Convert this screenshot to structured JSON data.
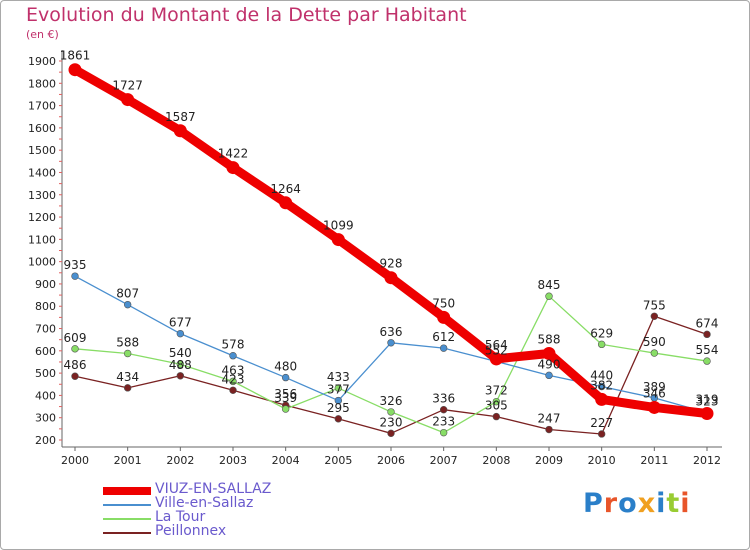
{
  "title": "Evolution du Montant de la Dette par Habitant",
  "unit": "(en €)",
  "logo": "Proxiti",
  "chart_data": {
    "type": "line",
    "x": [
      "2000",
      "2001",
      "2002",
      "2003",
      "2004",
      "2005",
      "2006",
      "2007",
      "2008",
      "2009",
      "2010",
      "2011",
      "2012"
    ],
    "ylim": [
      200,
      1900
    ],
    "yticks": [
      200,
      300,
      400,
      500,
      600,
      700,
      800,
      900,
      1000,
      1100,
      1200,
      1300,
      1400,
      1500,
      1600,
      1700,
      1800,
      1900
    ],
    "grid": false,
    "legend_position": "bottom-left",
    "series": [
      {
        "name": "VIUZ-EN-SALLAZ",
        "color": "#ee0000",
        "values": [
          1861,
          1727,
          1587,
          1422,
          1264,
          1099,
          928,
          750,
          564,
          588,
          382,
          346,
          319
        ]
      },
      {
        "name": "Ville-en-Sallaz",
        "color": "#4a8fcf",
        "values": [
          935,
          807,
          677,
          578,
          480,
          377,
          636,
          612,
          552,
          490,
          440,
          389,
          323
        ]
      },
      {
        "name": "La Tour",
        "color": "#88dd66",
        "values": [
          609,
          588,
          540,
          463,
          339,
          433,
          326,
          233,
          372,
          845,
          629,
          590,
          554
        ]
      },
      {
        "name": "Peillonnex",
        "color": "#7a2222",
        "values": [
          486,
          434,
          488,
          423,
          356,
          295,
          230,
          336,
          305,
          247,
          227,
          755,
          674
        ]
      }
    ]
  }
}
